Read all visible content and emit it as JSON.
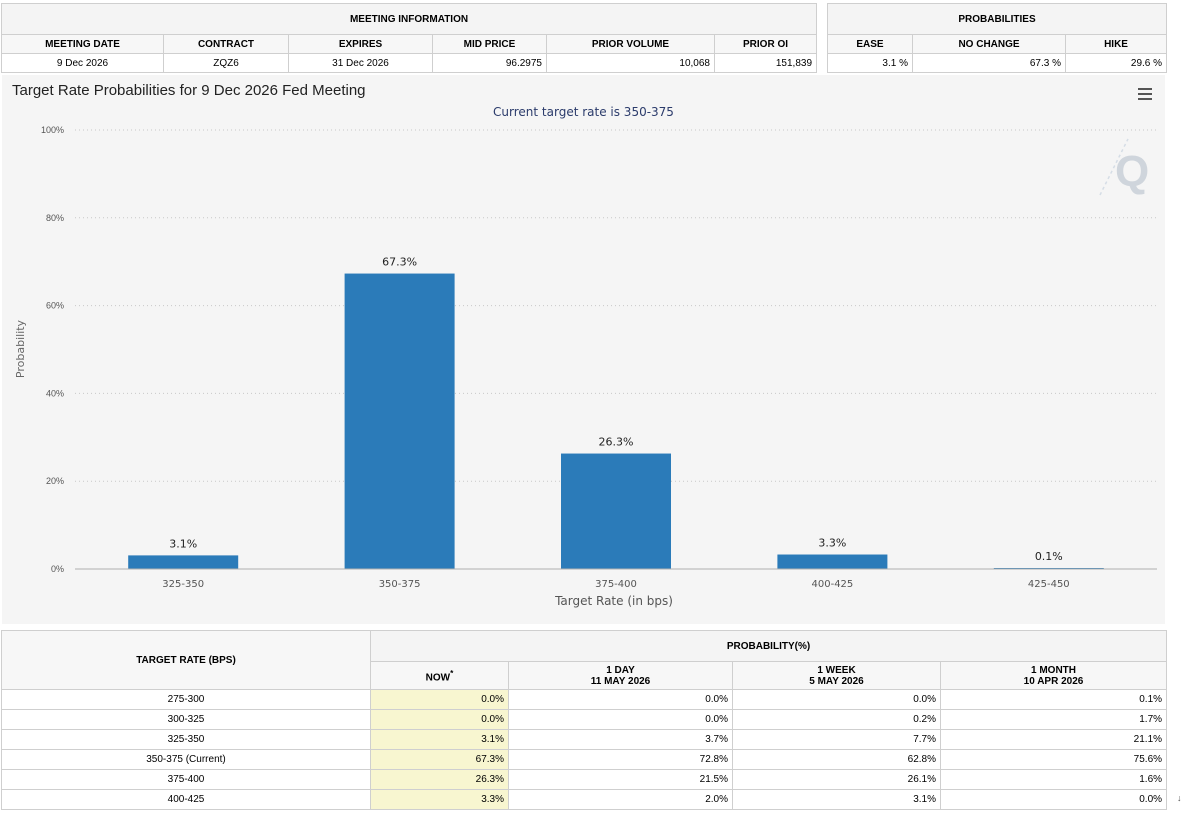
{
  "meeting_info": {
    "title": "MEETING INFORMATION",
    "headers": [
      "MEETING DATE",
      "CONTRACT",
      "EXPIRES",
      "MID PRICE",
      "PRIOR VOLUME",
      "PRIOR OI"
    ],
    "values": [
      "9 Dec 2026",
      "ZQZ6",
      "31 Dec 2026",
      "96.2975",
      "10,068",
      "151,839"
    ]
  },
  "probabilities": {
    "title": "PROBABILITIES",
    "headers": [
      "EASE",
      "NO CHANGE",
      "HIKE"
    ],
    "values": [
      "3.1 %",
      "67.3 %",
      "29.6 %"
    ]
  },
  "chart": {
    "title": "Target Rate Probabilities for 9 Dec 2026 Fed Meeting",
    "subtitle": "Current target rate is 350-375",
    "bar_color": "#2b7bb9"
  },
  "chart_data": {
    "type": "bar",
    "title": "Target Rate Probabilities for 9 Dec 2026 Fed Meeting",
    "subtitle": "Current target rate is 350-375",
    "categories": [
      "325-350",
      "350-375",
      "375-400",
      "400-425",
      "425-450"
    ],
    "values": [
      3.1,
      67.3,
      26.3,
      3.3,
      0.1
    ],
    "data_labels": [
      "3.1%",
      "67.3%",
      "26.3%",
      "3.3%",
      "0.1%"
    ],
    "xlabel": "Target Rate (in bps)",
    "ylabel": "Probability",
    "ylim": [
      0,
      100
    ],
    "yticks": [
      0,
      20,
      40,
      60,
      80,
      100
    ],
    "ytick_labels": [
      "0%",
      "20%",
      "40%",
      "60%",
      "80%",
      "100%"
    ],
    "grid": true
  },
  "rates_table": {
    "col_header": "TARGET RATE (BPS)",
    "group_header": "PROBABILITY(%)",
    "now_label": "NOW",
    "now_marker": "*",
    "periods": [
      {
        "label": "1 DAY",
        "date": "11 MAY 2026"
      },
      {
        "label": "1 WEEK",
        "date": "5 MAY 2026"
      },
      {
        "label": "1 MONTH",
        "date": "10 APR 2026"
      }
    ],
    "rows": [
      {
        "rate": "275-300",
        "now": "0.0%",
        "day": "0.0%",
        "week": "0.0%",
        "month": "0.1%"
      },
      {
        "rate": "300-325",
        "now": "0.0%",
        "day": "0.0%",
        "week": "0.2%",
        "month": "1.7%"
      },
      {
        "rate": "325-350",
        "now": "3.1%",
        "day": "3.7%",
        "week": "7.7%",
        "month": "21.1%"
      },
      {
        "rate": "350-375 (Current)",
        "now": "67.3%",
        "day": "72.8%",
        "week": "62.8%",
        "month": "75.6%"
      },
      {
        "rate": "375-400",
        "now": "26.3%",
        "day": "21.5%",
        "week": "26.1%",
        "month": "1.6%"
      },
      {
        "rate": "400-425",
        "now": "3.3%",
        "day": "2.0%",
        "week": "3.1%",
        "month": "0.0%"
      }
    ]
  }
}
